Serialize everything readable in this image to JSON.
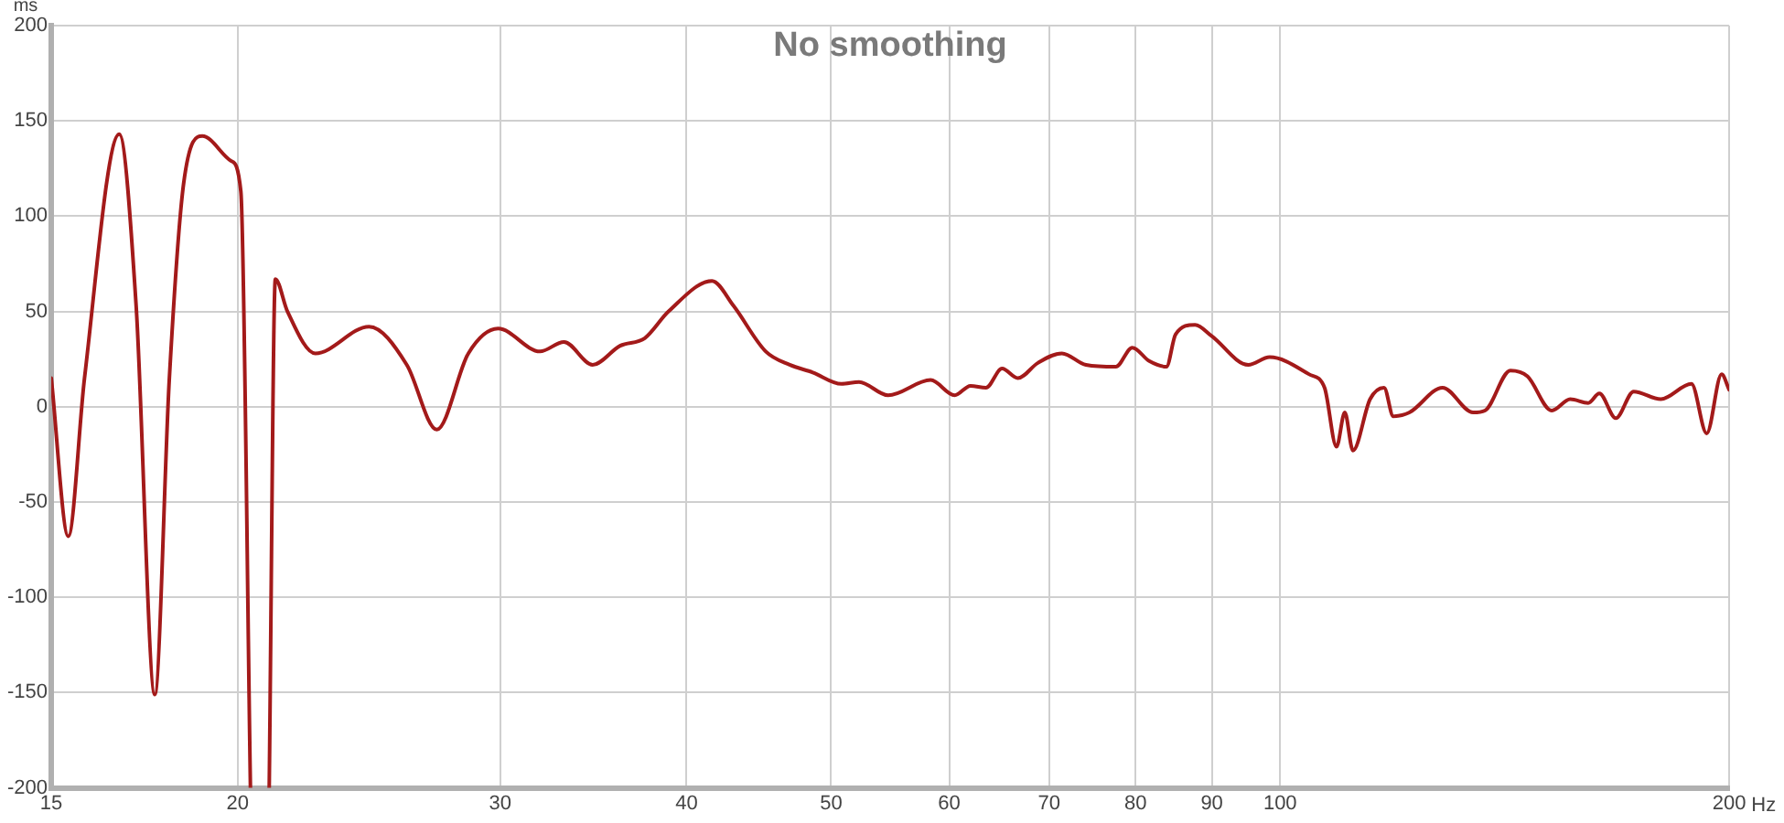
{
  "chart_data": {
    "type": "line",
    "title": "No smoothing",
    "xlabel": "Hz",
    "ylabel": "ms",
    "log": "x",
    "grid": true,
    "legend": false,
    "marker": "none",
    "line_style": "solid",
    "xlim": [
      15,
      200
    ],
    "xticks": [
      15,
      20,
      30,
      40,
      50,
      60,
      70,
      80,
      90,
      100,
      200
    ],
    "ylim": [
      -200,
      200
    ],
    "yticks": [
      -200,
      -150,
      -100,
      -50,
      0,
      50,
      100,
      150,
      200
    ],
    "x": [
      15,
      15.4,
      15.79,
      16.66,
      17.1,
      17.6,
      18.0,
      18.4,
      18.94,
      19.8,
      20.1,
      20.4,
      20.7,
      21.0,
      21.2,
      21.6,
      22.55,
      24.5,
      25.97,
      27.2,
      28.56,
      29.9,
      31.9,
      33.1,
      34.6,
      36.1,
      37.5,
      38.9,
      41.6,
      43.0,
      45.2,
      46.9,
      48.6,
      50.8,
      52.2,
      54.6,
      58.3,
      60.5,
      62.0,
      63.5,
      65.1,
      66.7,
      68.8,
      71.4,
      74.1,
      77.6,
      79.6,
      81.7,
      83.9,
      85.1,
      87.7,
      90.0,
      95.2,
      98.4,
      104.6,
      107.1,
      109.1,
      110.5,
      111.9,
      114.9,
      117.4,
      119.1,
      122.1,
      128.5,
      134.7,
      137.2,
      142.7,
      146.5,
      152.1,
      156.5,
      160.9,
      163.7,
      167.9,
      172.6,
      180.0,
      188.7,
      193.2,
      197.7,
      200
    ],
    "series": [
      {
        "color": "#a31a1a",
        "values": [
          15,
          -68,
          15,
          143,
          53,
          -151,
          15,
          117,
          142,
          129,
          113,
          -200,
          null,
          -200,
          67,
          50,
          28,
          42,
          22,
          -12,
          28,
          41,
          29,
          34,
          22,
          32,
          36,
          50,
          66,
          53,
          29,
          22,
          18,
          12,
          13,
          6,
          14,
          6,
          11,
          10,
          20,
          15,
          23,
          28,
          22,
          21,
          31,
          24,
          21,
          38,
          43,
          37,
          22,
          26,
          17,
          10,
          -21,
          -3,
          -23,
          4,
          10,
          -5,
          -3,
          10,
          -3,
          -2,
          19,
          16,
          -2,
          4,
          2,
          7,
          -6,
          8,
          4,
          12,
          -14,
          17,
          9
        ]
      }
    ]
  }
}
